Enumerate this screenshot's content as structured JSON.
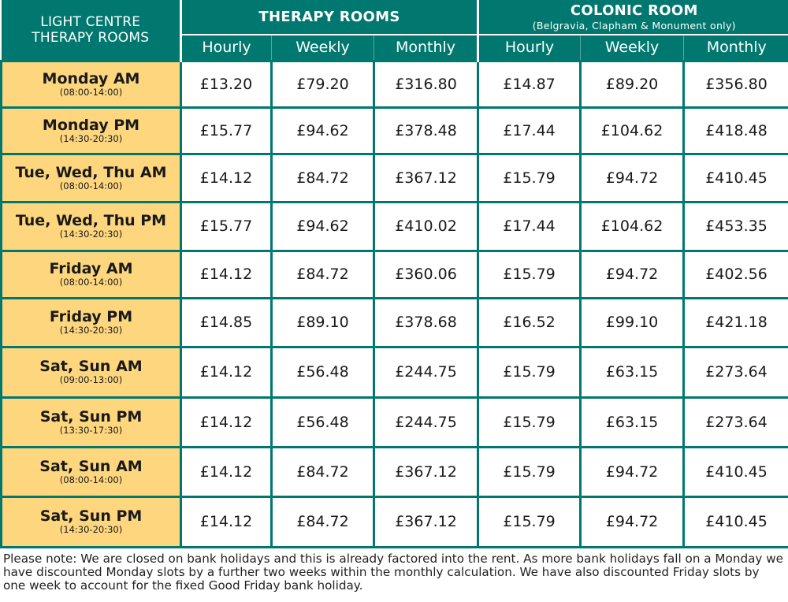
{
  "header": {
    "corner_line1": "LIGHT CENTRE",
    "corner_line2": "THERAPY ROOMS",
    "therapy_title": "THERAPY ROOMS",
    "colonic_title": "COLONIC ROOM",
    "colonic_subtitle": "(Belgravia, Clapham & Monument only)",
    "columns": [
      "Hourly",
      "Weekly",
      "Monthly",
      "Hourly",
      "Weekly",
      "Monthly"
    ]
  },
  "rows": [
    {
      "label": "Monday AM",
      "time": "(08:00-14:00)",
      "prices": [
        "£13.20",
        "£79.20",
        "£316.80",
        "£14.87",
        "£89.20",
        "£356.80"
      ]
    },
    {
      "label": "Monday PM",
      "time": "(14:30-20:30)",
      "prices": [
        "£15.77",
        "£94.62",
        "£378.48",
        "£17.44",
        "£104.62",
        "£418.48"
      ]
    },
    {
      "label": "Tue, Wed, Thu AM",
      "time": "(08:00-14:00)",
      "prices": [
        "£14.12",
        "£84.72",
        "£367.12",
        "£15.79",
        "£94.72",
        "£410.45"
      ]
    },
    {
      "label": "Tue, Wed, Thu PM",
      "time": "(14:30-20:30)",
      "prices": [
        "£15.77",
        "£94.62",
        "£410.02",
        "£17.44",
        "£104.62",
        "£453.35"
      ]
    },
    {
      "label": "Friday AM",
      "time": "(08:00-14:00)",
      "prices": [
        "£14.12",
        "£84.72",
        "£360.06",
        "£15.79",
        "£94.72",
        "£402.56"
      ]
    },
    {
      "label": "Friday PM",
      "time": "(14:30-20:30)",
      "prices": [
        "£14.85",
        "£89.10",
        "£378.68",
        "£16.52",
        "£99.10",
        "£421.18"
      ]
    },
    {
      "label": "Sat, Sun AM",
      "time": "(09:00-13:00)",
      "prices": [
        "£14.12",
        "£56.48",
        "£244.75",
        "£15.79",
        "£63.15",
        "£273.64"
      ]
    },
    {
      "label": "Sat, Sun PM",
      "time": "(13:30-17:30)",
      "prices": [
        "£14.12",
        "£56.48",
        "£244.75",
        "£15.79",
        "£63.15",
        "£273.64"
      ]
    },
    {
      "label": "Sat, Sun AM",
      "time": "(08:00-14:00)",
      "prices": [
        "£14.12",
        "£84.72",
        "£367.12",
        "£15.79",
        "£94.72",
        "£410.45"
      ]
    },
    {
      "label": "Sat, Sun PM",
      "time": "(14:30-20:30)",
      "prices": [
        "£14.12",
        "£84.72",
        "£367.12",
        "£15.79",
        "£94.72",
        "£410.45"
      ]
    }
  ],
  "footnote": "Please note: We are closed on bank holidays and this is already factored into the rent. As more bank holidays fall on a Monday we have discounted Monday slots by a further two weeks within the monthly calculation. We have also discounted Friday slots by one week to account for the fixed Good Friday bank holiday.",
  "colors": {
    "header_teal": "#00786f",
    "row_label_yellow": "#fdd67e",
    "cell_white": "#ffffff"
  }
}
